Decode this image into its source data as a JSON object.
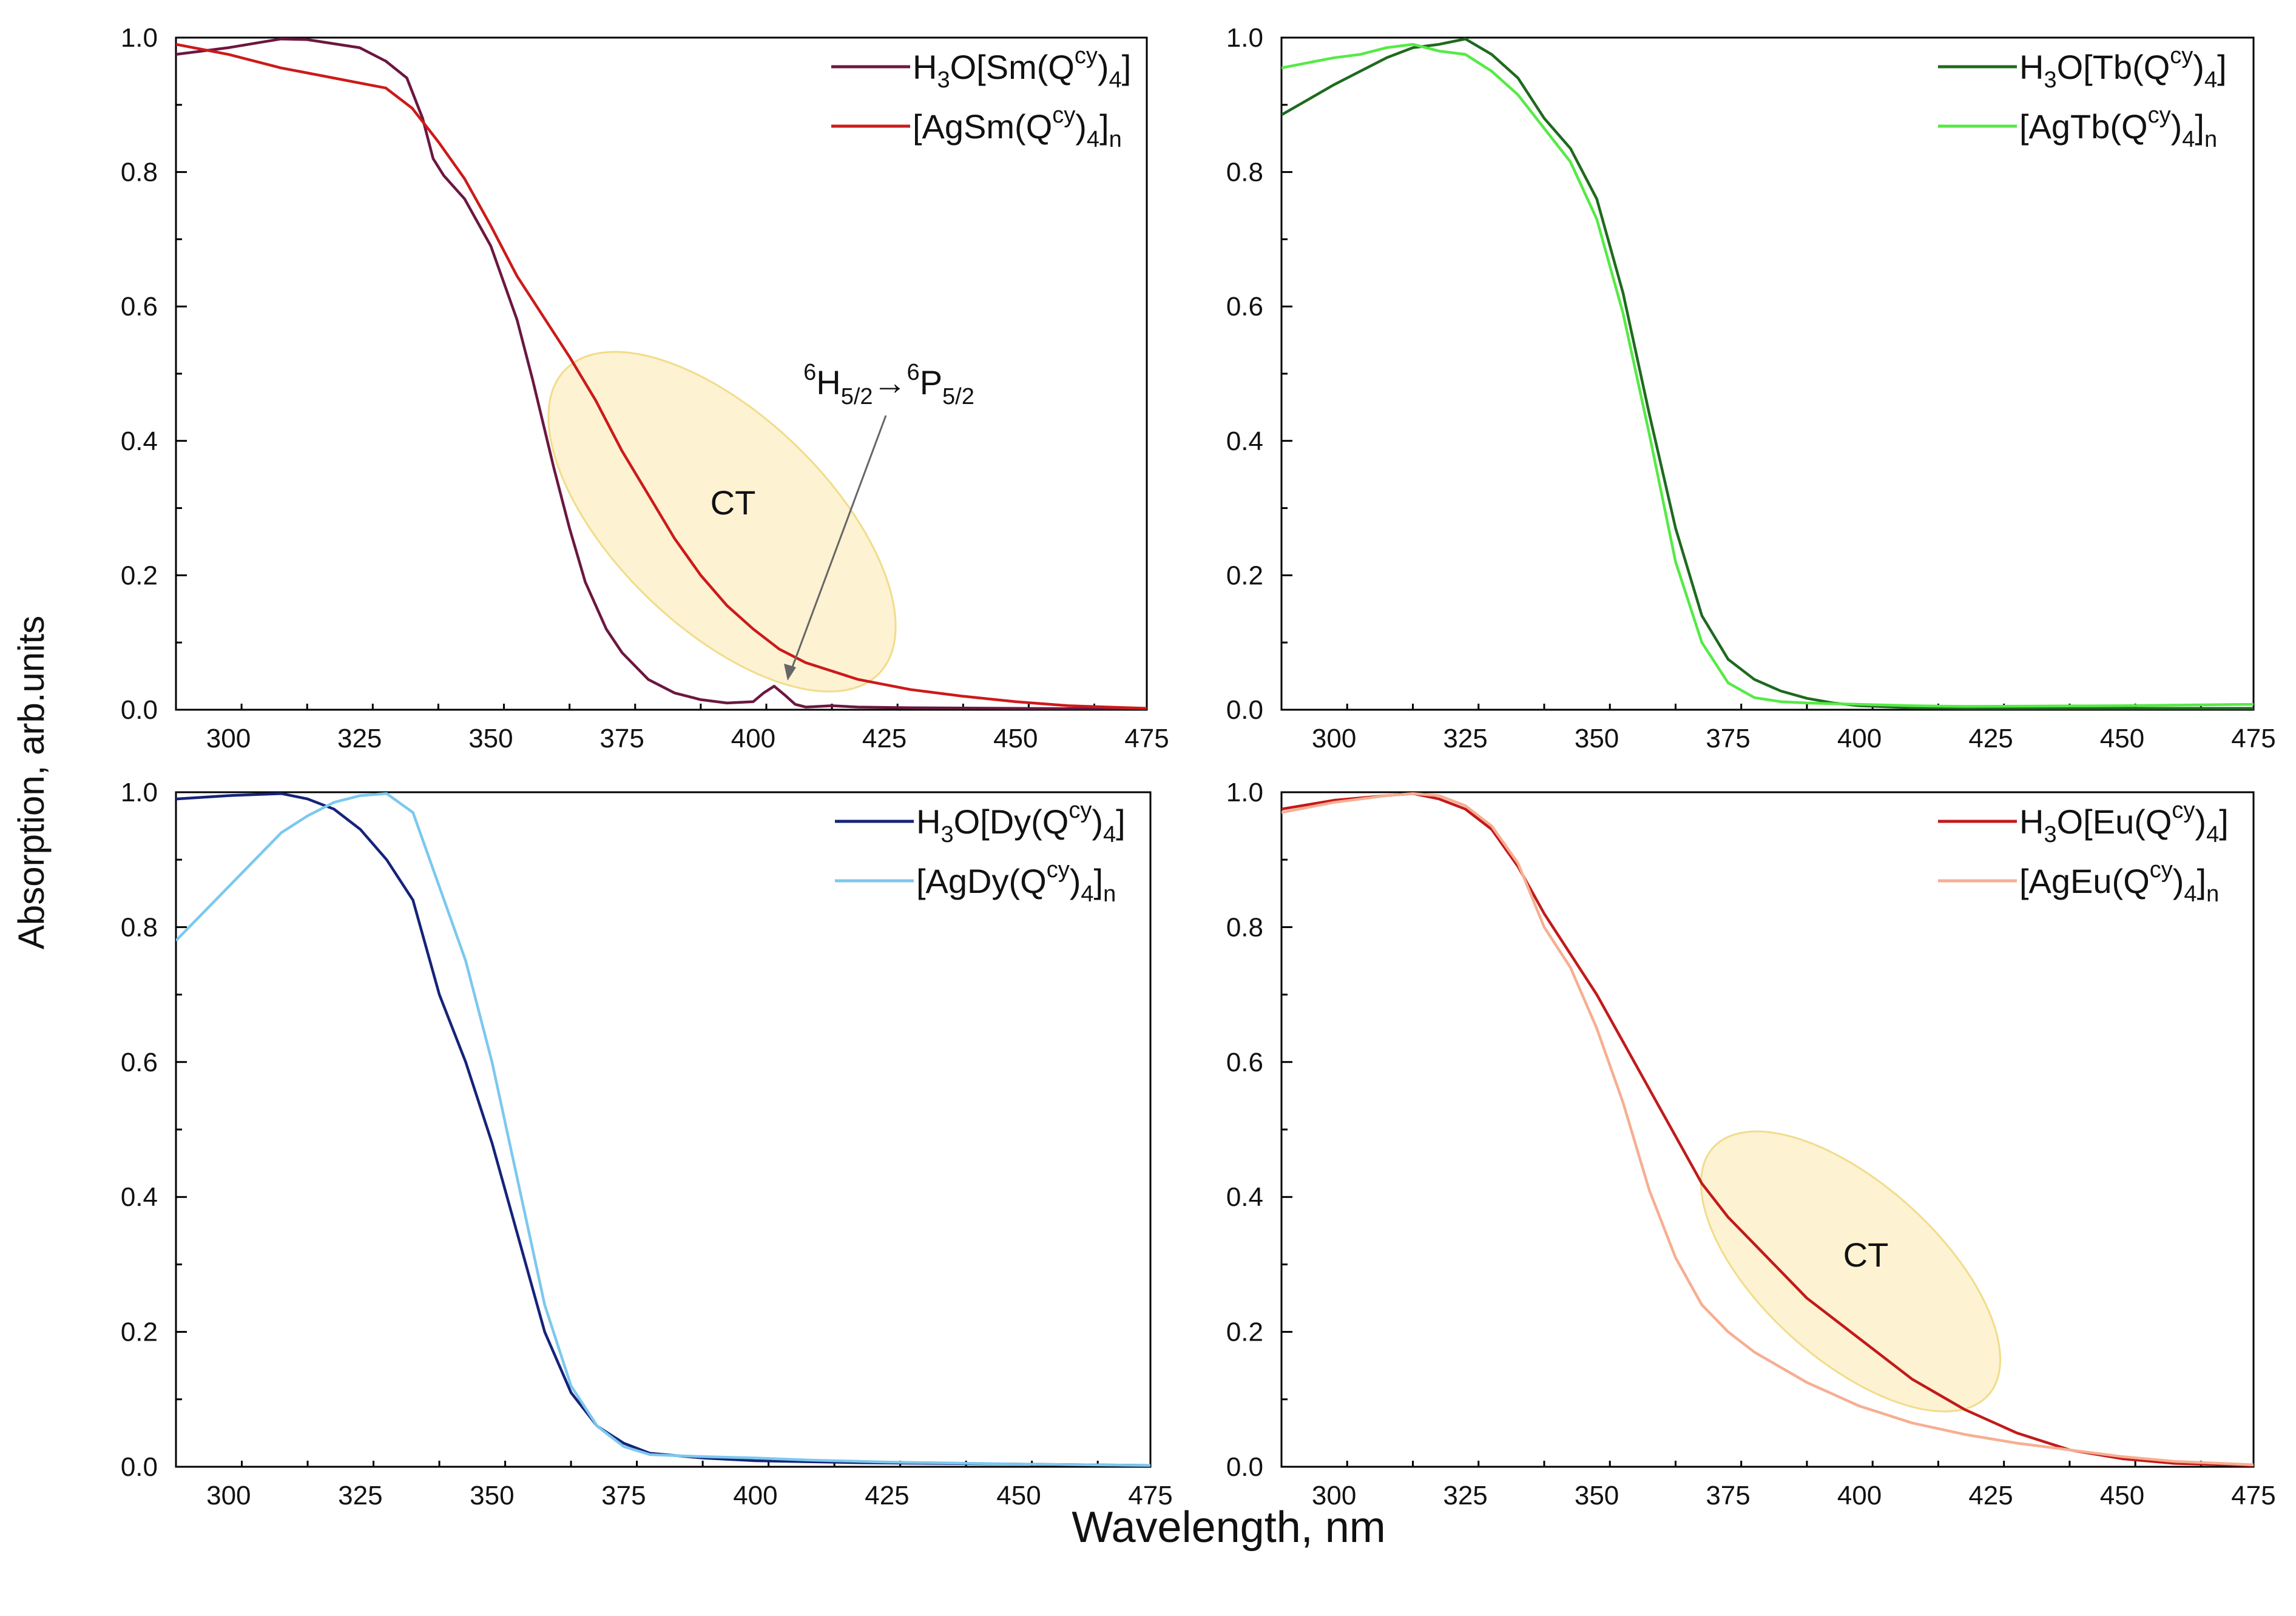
{
  "figure": {
    "ylabel": "Absorption, arb.units",
    "xlabel": "Wavelength, nm"
  },
  "chart_data": [
    {
      "id": "sm",
      "type": "line",
      "xlim": [
        290,
        475
      ],
      "ylim": [
        0,
        1.0
      ],
      "xticks": [
        300,
        325,
        350,
        375,
        400,
        425,
        450,
        475
      ],
      "yticks": [
        0.0,
        0.2,
        0.4,
        0.6,
        0.8,
        1.0
      ],
      "legend_position": "top-right",
      "series": [
        {
          "name": "H3O[Sm(Qcy)4]",
          "legend": {
            "pre": "H",
            "s1": "3",
            "mid": "O[Sm(Q",
            "sup": "cy",
            "post": ")",
            "s2": "4",
            "end": "]"
          },
          "color": "#6b1740",
          "x": [
            290,
            300,
            310,
            315,
            325,
            330,
            334,
            337,
            339,
            341,
            345,
            350,
            355,
            358,
            362,
            365,
            368,
            372,
            375,
            380,
            385,
            390,
            395,
            400,
            402,
            404,
            406,
            408,
            410,
            415,
            420,
            430,
            450,
            475
          ],
          "y": [
            0.975,
            0.985,
            0.998,
            0.997,
            0.985,
            0.965,
            0.94,
            0.88,
            0.82,
            0.795,
            0.76,
            0.69,
            0.58,
            0.49,
            0.36,
            0.27,
            0.19,
            0.12,
            0.085,
            0.045,
            0.025,
            0.015,
            0.01,
            0.012,
            0.025,
            0.035,
            0.022,
            0.008,
            0.004,
            0.006,
            0.004,
            0.003,
            0.002,
            0.001
          ]
        },
        {
          "name": "[AgSm(Qcy)4]n",
          "legend": {
            "pre": "[AgSm(Q",
            "sup": "cy",
            "post": ")",
            "s2": "4",
            "end": "]",
            "s3": "n"
          },
          "color": "#cc1a1a",
          "x": [
            290,
            300,
            310,
            320,
            330,
            335,
            340,
            345,
            350,
            355,
            360,
            365,
            370,
            375,
            380,
            385,
            390,
            395,
            400,
            405,
            410,
            420,
            430,
            440,
            450,
            460,
            475
          ],
          "y": [
            0.99,
            0.975,
            0.955,
            0.94,
            0.925,
            0.895,
            0.845,
            0.79,
            0.72,
            0.645,
            0.585,
            0.525,
            0.46,
            0.385,
            0.32,
            0.255,
            0.2,
            0.155,
            0.12,
            0.09,
            0.07,
            0.045,
            0.03,
            0.02,
            0.012,
            0.006,
            0.002
          ]
        }
      ],
      "annotations": {
        "ct_label": "CT",
        "transition": {
          "pre": "6",
          "a": "H",
          "asub": "5/2",
          "arrow": "→",
          "mid": "6",
          "b": "P",
          "bsub": "5/2"
        },
        "arrow_target": [
          404,
          0.03
        ]
      }
    },
    {
      "id": "tb",
      "type": "line",
      "xlim": [
        290,
        475
      ],
      "ylim": [
        0,
        1.0
      ],
      "xticks": [
        300,
        325,
        350,
        375,
        400,
        425,
        450,
        475
      ],
      "yticks": [
        0.0,
        0.2,
        0.4,
        0.6,
        0.8,
        1.0
      ],
      "legend_position": "top-right",
      "series": [
        {
          "name": "H3O[Tb(Qcy)4]",
          "legend": {
            "pre": "H",
            "s1": "3",
            "mid": "O[Tb(Q",
            "sup": "cy",
            "post": ")",
            "s2": "4",
            "end": "]"
          },
          "color": "#1e6a1e",
          "x": [
            290,
            300,
            310,
            315,
            320,
            325,
            330,
            335,
            340,
            345,
            350,
            355,
            360,
            365,
            370,
            375,
            380,
            385,
            390,
            395,
            400,
            410,
            420,
            450,
            475
          ],
          "y": [
            0.885,
            0.93,
            0.97,
            0.985,
            0.99,
            0.998,
            0.975,
            0.94,
            0.88,
            0.835,
            0.76,
            0.62,
            0.44,
            0.27,
            0.14,
            0.075,
            0.045,
            0.028,
            0.017,
            0.01,
            0.006,
            0.003,
            0.002,
            0.002,
            0.002
          ]
        },
        {
          "name": "[AgTb(Qcy)4]n",
          "legend": {
            "pre": "[AgTb(Q",
            "sup": "cy",
            "post": ")",
            "s2": "4",
            "end": "]",
            "s3": "n"
          },
          "color": "#55ea45",
          "x": [
            290,
            300,
            305,
            310,
            315,
            320,
            325,
            330,
            335,
            340,
            345,
            350,
            355,
            360,
            365,
            370,
            375,
            380,
            385,
            390,
            400,
            410,
            420,
            450,
            475
          ],
          "y": [
            0.955,
            0.97,
            0.975,
            0.985,
            0.99,
            0.98,
            0.975,
            0.95,
            0.915,
            0.865,
            0.815,
            0.73,
            0.59,
            0.41,
            0.22,
            0.1,
            0.04,
            0.018,
            0.012,
            0.01,
            0.008,
            0.006,
            0.005,
            0.006,
            0.008
          ]
        }
      ]
    },
    {
      "id": "dy",
      "type": "line",
      "xlim": [
        290,
        475
      ],
      "ylim": [
        0,
        1.0
      ],
      "xticks": [
        300,
        325,
        350,
        375,
        400,
        425,
        450,
        475
      ],
      "yticks": [
        0.0,
        0.2,
        0.4,
        0.6,
        0.8,
        1.0
      ],
      "legend_position": "top-right",
      "series": [
        {
          "name": "H3O[Dy(Qcy)4]",
          "legend": {
            "pre": "H",
            "s1": "3",
            "mid": "O[Dy(Q",
            "sup": "cy",
            "post": ")",
            "s2": "4",
            "end": "]"
          },
          "color": "#15237a",
          "x": [
            290,
            300,
            310,
            315,
            320,
            325,
            330,
            335,
            340,
            345,
            350,
            355,
            360,
            365,
            370,
            375,
            380,
            390,
            400,
            420,
            450,
            475
          ],
          "y": [
            0.99,
            0.995,
            0.998,
            0.99,
            0.975,
            0.945,
            0.9,
            0.84,
            0.7,
            0.6,
            0.48,
            0.34,
            0.2,
            0.11,
            0.06,
            0.035,
            0.02,
            0.013,
            0.009,
            0.006,
            0.004,
            0.002
          ]
        },
        {
          "name": "[AgDy(Qcy)4]n",
          "legend": {
            "pre": "[AgDy(Q",
            "sup": "cy",
            "post": ")",
            "s2": "4",
            "end": "]",
            "s3": "n"
          },
          "color": "#7cc8ee",
          "x": [
            290,
            295,
            300,
            305,
            310,
            315,
            320,
            325,
            330,
            335,
            340,
            345,
            350,
            355,
            360,
            365,
            370,
            375,
            380,
            390,
            400,
            410,
            425,
            450,
            475
          ],
          "y": [
            0.78,
            0.82,
            0.86,
            0.9,
            0.94,
            0.965,
            0.985,
            0.995,
            0.998,
            0.97,
            0.86,
            0.75,
            0.6,
            0.42,
            0.24,
            0.12,
            0.06,
            0.03,
            0.018,
            0.015,
            0.013,
            0.01,
            0.007,
            0.004,
            0.002
          ]
        }
      ]
    },
    {
      "id": "eu",
      "type": "line",
      "xlim": [
        290,
        475
      ],
      "ylim": [
        0,
        1.0
      ],
      "xticks": [
        300,
        325,
        350,
        375,
        400,
        425,
        450,
        475
      ],
      "yticks": [
        0.0,
        0.2,
        0.4,
        0.6,
        0.8,
        1.0
      ],
      "legend_position": "top-right",
      "series": [
        {
          "name": "H3O[Eu(Qcy)4]",
          "legend": {
            "pre": "H",
            "s1": "3",
            "mid": "O[Eu(Q",
            "sup": "cy",
            "post": ")",
            "s2": "4",
            "end": "]"
          },
          "color": "#c21a1a",
          "x": [
            290,
            300,
            310,
            315,
            320,
            325,
            330,
            335,
            340,
            345,
            350,
            355,
            360,
            365,
            370,
            375,
            380,
            390,
            400,
            410,
            420,
            430,
            440,
            450,
            460,
            475
          ],
          "y": [
            0.975,
            0.988,
            0.995,
            0.998,
            0.99,
            0.975,
            0.945,
            0.89,
            0.82,
            0.76,
            0.7,
            0.63,
            0.56,
            0.49,
            0.42,
            0.37,
            0.33,
            0.25,
            0.19,
            0.13,
            0.085,
            0.05,
            0.025,
            0.012,
            0.005,
            0.002
          ]
        },
        {
          "name": "[AgEu(Qcy)4]n",
          "legend": {
            "pre": "[AgEu(Q",
            "sup": "cy",
            "post": ")",
            "s2": "4",
            "end": "]",
            "s3": "n"
          },
          "color": "#f7ae92",
          "x": [
            290,
            300,
            310,
            315,
            320,
            325,
            330,
            335,
            340,
            345,
            350,
            355,
            360,
            365,
            370,
            375,
            380,
            390,
            400,
            410,
            420,
            430,
            440,
            450,
            460,
            475
          ],
          "y": [
            0.97,
            0.985,
            0.995,
            0.998,
            0.995,
            0.98,
            0.95,
            0.895,
            0.8,
            0.74,
            0.65,
            0.54,
            0.41,
            0.31,
            0.24,
            0.2,
            0.17,
            0.125,
            0.09,
            0.065,
            0.048,
            0.035,
            0.025,
            0.015,
            0.008,
            0.003
          ]
        }
      ],
      "annotations": {
        "ct_label": "CT"
      }
    }
  ]
}
